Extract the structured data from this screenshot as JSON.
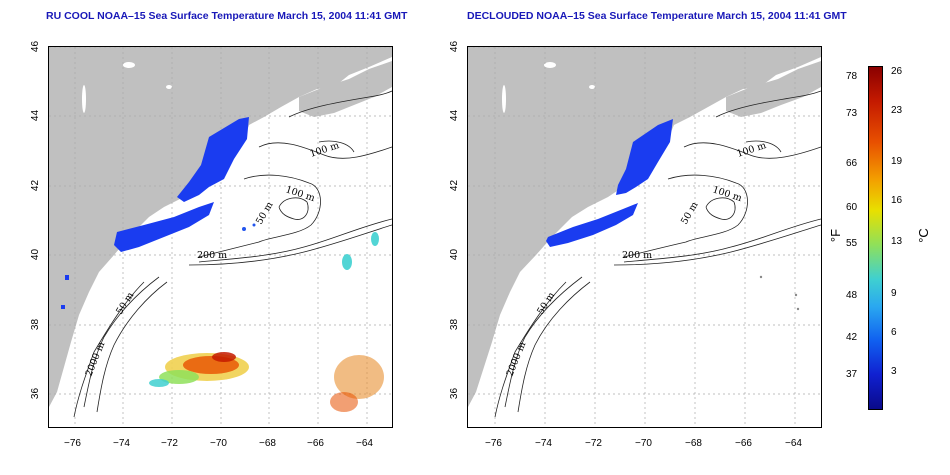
{
  "titles": {
    "left": "RU COOL NOAA–15 Sea Surface Temperature March 15, 2004 11:41 GMT",
    "right": "DECLOUDED NOAA–15 Sea Surface Temperature March 15, 2004 11:41 GMT"
  },
  "axes": {
    "x_ticks": [
      "−76",
      "−74",
      "−72",
      "−70",
      "−68",
      "−66",
      "−64"
    ],
    "y_ticks": [
      "46",
      "44",
      "42",
      "40",
      "38",
      "36"
    ]
  },
  "contour_labels": {
    "m100_a": "100 m",
    "m100_b": "100 m",
    "m50_a": "50 m",
    "m50_b": "50 m",
    "m200": "200 m",
    "m2000": "2000 m"
  },
  "colorbar": {
    "fahrenheit_unit": "°F",
    "celsius_unit": "°C",
    "fahrenheit_ticks": [
      "78",
      "73",
      "66",
      "60",
      "55",
      "48",
      "42",
      "37"
    ],
    "celsius_ticks": [
      "26",
      "23",
      "19",
      "16",
      "13",
      "9",
      "6",
      "3"
    ],
    "colors": [
      "#8a0000",
      "#e85000",
      "#e8e000",
      "#3fd0d0",
      "#1060f0",
      "#0a0a8a"
    ]
  },
  "colors": {
    "land": "#c0c0c0",
    "title": "#1818b8",
    "cold_water": "#1a3cf0"
  }
}
